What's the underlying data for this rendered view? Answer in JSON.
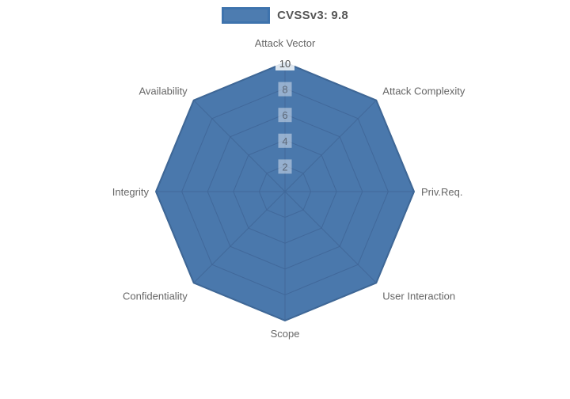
{
  "legend": {
    "label": "CVSSv3: 9.8"
  },
  "chart_data": {
    "type": "radar",
    "title": "CVSSv3: 9.8",
    "categories": [
      "Attack Vector",
      "Attack Complexity",
      "Priv.Req.",
      "User Interaction",
      "Scope",
      "Confidentiality",
      "Integrity",
      "Availability"
    ],
    "series": [
      {
        "name": "CVSSv3: 9.8",
        "values": [
          10,
          10,
          10,
          10,
          10,
          10,
          10,
          10
        ]
      }
    ],
    "ticks": [
      2,
      4,
      6,
      8,
      10
    ],
    "rmin": 0,
    "rmax": 10,
    "grid": true,
    "legend_position": "top",
    "colors": {
      "fill": "#4a78ac",
      "stroke": "#3a648f",
      "grid": "#41689a",
      "tick_text": "#5c6878",
      "tick_text_max": "#4f4f4f",
      "tick_backdrop": "rgba(255,255,255,0.42)",
      "tick_backdrop_max": "rgba(255,255,255,0.82)",
      "axis_label": "#666666",
      "legend_text": "#565656",
      "legend_box_fill": "#4d7cb0",
      "legend_box_border": "#3e73ad"
    }
  }
}
